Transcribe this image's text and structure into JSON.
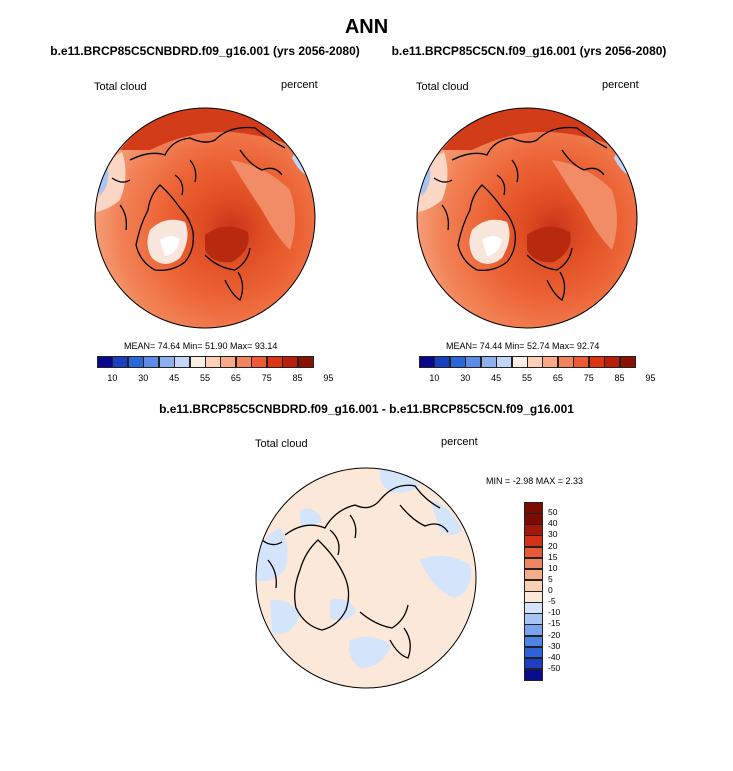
{
  "figure": {
    "title": "ANN"
  },
  "panels": [
    {
      "run_title": "b.e11.BRCP85C5CNBDRD.f09_g16.001 (yrs 2056-2080)",
      "variable_label": "Total cloud",
      "units_label": "percent",
      "stats_text": "MEAN=  74.64  Min=  51.90  Max=  93.14"
    },
    {
      "run_title": "b.e11.BRCP85C5CN.f09_g16.001 (yrs 2056-2080)",
      "variable_label": "Total cloud",
      "units_label": "percent",
      "stats_text": "MEAN=  74.44  Min=  52.74  Max=  92.74"
    },
    {
      "run_title": "b.e11.BRCP85C5CNBDRD.f09_g16.001 - b.e11.BRCP85C5CN.f09_g16.001",
      "variable_label": "Total cloud",
      "units_label": "percent",
      "stats_text": "MIN =   -2.98 MAX =    2.33"
    }
  ],
  "colorbars": {
    "absolute": {
      "colors": [
        "#08088c",
        "#1840c0",
        "#2a66d8",
        "#5c8ce6",
        "#8fb0ee",
        "#c3d6f7",
        "#fbeee4",
        "#fbd0b6",
        "#f7a988",
        "#f38460",
        "#ee5a34",
        "#dd3412",
        "#b81e08",
        "#8a1204"
      ],
      "tick_labels": [
        "10",
        "30",
        "45",
        "55",
        "65",
        "75",
        "85",
        "95"
      ]
    },
    "difference": {
      "colors": [
        "#0a0a8c",
        "#1e3fc4",
        "#2f63dc",
        "#4f83e8",
        "#7aa4ef",
        "#a8c4f4",
        "#d4e4fa",
        "#fbe8d8",
        "#fbcfb2",
        "#f6ac8a",
        "#f18462",
        "#e85a36",
        "#d4331a",
        "#a51808",
        "#7a0c02"
      ],
      "tick_labels": [
        "50",
        "40",
        "30",
        "20",
        "15",
        "10",
        "5",
        "0",
        "-5",
        "-10",
        "-15",
        "-20",
        "-30",
        "-40",
        "-50"
      ]
    }
  },
  "chart_data": [
    {
      "type": "heatmap",
      "projection": "north polar stereographic",
      "title": "b.e11.BRCP85C5CNBDRD.f09_g16.001 (yrs 2056-2080)",
      "variable": "Total cloud",
      "units": "percent",
      "mean": 74.64,
      "min": 51.9,
      "max": 93.14,
      "contour_levels": [
        10,
        20,
        30,
        40,
        45,
        50,
        55,
        60,
        65,
        70,
        75,
        80,
        85,
        90,
        95
      ]
    },
    {
      "type": "heatmap",
      "projection": "north polar stereographic",
      "title": "b.e11.BRCP85C5CN.f09_g16.001 (yrs 2056-2080)",
      "variable": "Total cloud",
      "units": "percent",
      "mean": 74.44,
      "min": 52.74,
      "max": 92.74,
      "contour_levels": [
        10,
        20,
        30,
        40,
        45,
        50,
        55,
        60,
        65,
        70,
        75,
        80,
        85,
        90,
        95
      ]
    },
    {
      "type": "heatmap",
      "projection": "north polar stereographic",
      "title": "b.e11.BRCP85C5CNBDRD.f09_g16.001 - b.e11.BRCP85C5CN.f09_g16.001",
      "variable": "Total cloud",
      "units": "percent",
      "min": -2.98,
      "max": 2.33,
      "contour_levels": [
        -50,
        -40,
        -30,
        -20,
        -15,
        -10,
        -5,
        0,
        5,
        10,
        15,
        20,
        30,
        40,
        50
      ]
    }
  ]
}
